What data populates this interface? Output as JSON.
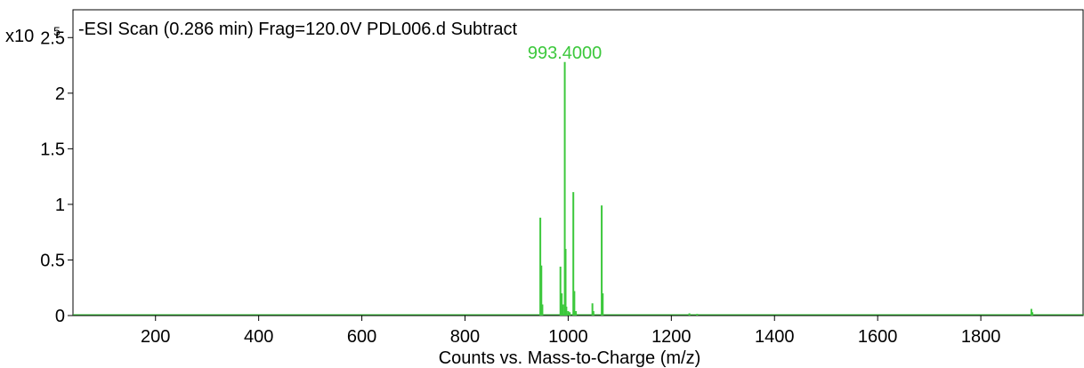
{
  "chart_data": {
    "type": "bar",
    "title": "-ESI Scan (0.286 min) Frag=120.0V PDL006.d  Subtract",
    "xlabel": "Counts vs. Mass-to-Charge (m/z)",
    "ylabel": "",
    "y_multiplier_label": "x10",
    "y_multiplier_exponent": "5",
    "xlim": [
      40,
      2000
    ],
    "ylim": [
      0,
      2.75
    ],
    "xticks": [
      200,
      400,
      600,
      800,
      1000,
      1200,
      1400,
      1600,
      1800
    ],
    "yticks": [
      0,
      0.5,
      1,
      1.5,
      2,
      2.5
    ],
    "ytick_labels": [
      "0",
      "0.5",
      "1",
      "1.5",
      "2",
      "2.5"
    ],
    "grid": false,
    "peak_color": "#3cc83c",
    "label_color": "#3cc83c",
    "peaks": [
      {
        "mz": 946.0,
        "intensity": 0.88
      },
      {
        "mz": 948.0,
        "intensity": 0.45
      },
      {
        "mz": 950.0,
        "intensity": 0.1
      },
      {
        "mz": 985.0,
        "intensity": 0.44
      },
      {
        "mz": 987.5,
        "intensity": 0.2
      },
      {
        "mz": 990.0,
        "intensity": 0.1
      },
      {
        "mz": 993.4,
        "intensity": 2.28
      },
      {
        "mz": 995.0,
        "intensity": 0.6
      },
      {
        "mz": 996.5,
        "intensity": 0.08
      },
      {
        "mz": 1000.0,
        "intensity": 0.04
      },
      {
        "mz": 1003.0,
        "intensity": 0.03
      },
      {
        "mz": 1010.0,
        "intensity": 1.11
      },
      {
        "mz": 1012.0,
        "intensity": 0.22
      },
      {
        "mz": 1015.0,
        "intensity": 0.04
      },
      {
        "mz": 1047.0,
        "intensity": 0.11
      },
      {
        "mz": 1049.0,
        "intensity": 0.04
      },
      {
        "mz": 1065.0,
        "intensity": 0.99
      },
      {
        "mz": 1067.0,
        "intensity": 0.2
      },
      {
        "mz": 1235.0,
        "intensity": 0.02
      },
      {
        "mz": 1250.0,
        "intensity": 0.015
      },
      {
        "mz": 1898.0,
        "intensity": 0.06
      },
      {
        "mz": 1900.0,
        "intensity": 0.03
      }
    ],
    "annotations": [
      {
        "text": "993.4000",
        "mz": 993.4,
        "intensity": 2.28
      }
    ]
  }
}
